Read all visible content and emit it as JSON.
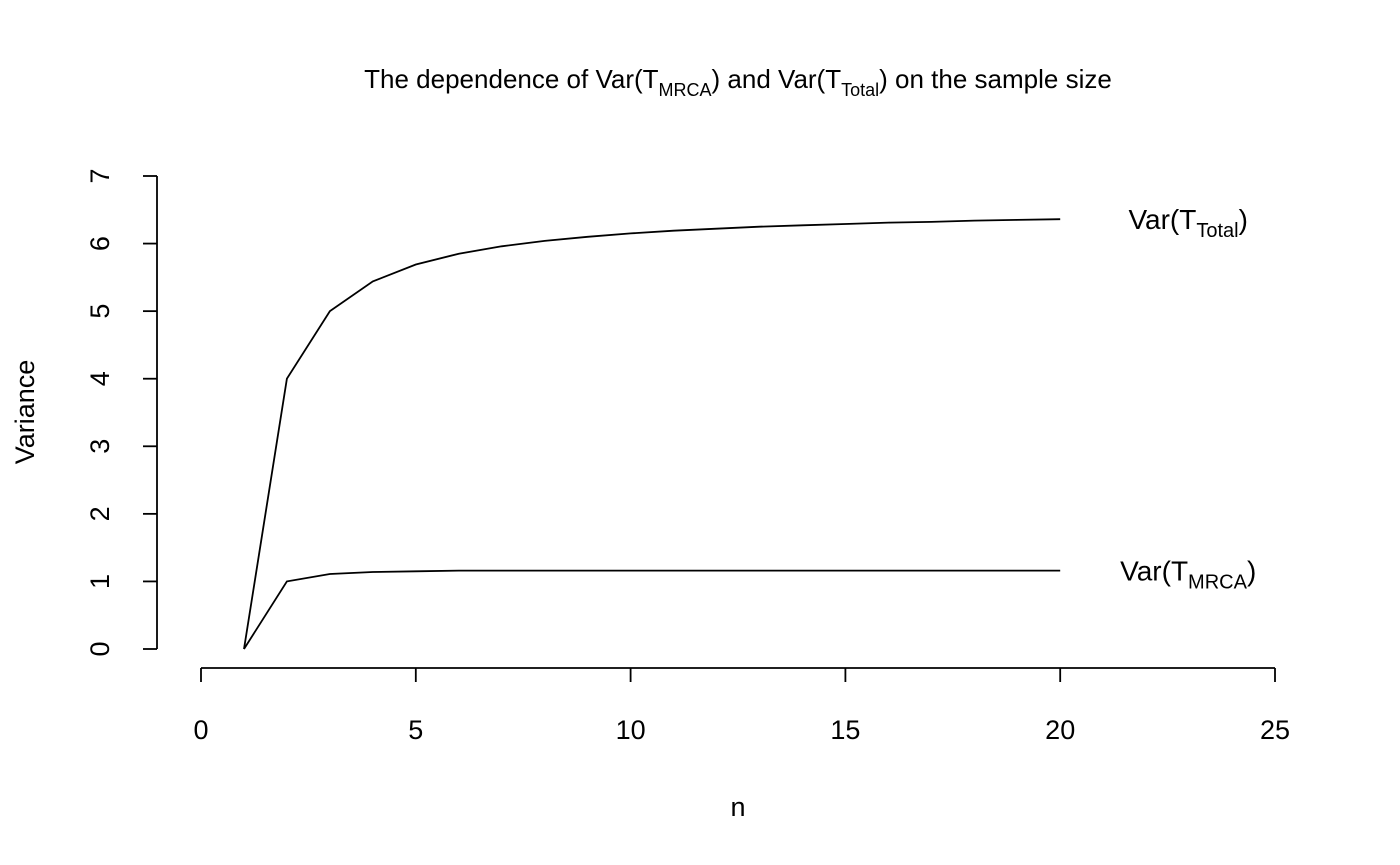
{
  "chart_data": {
    "type": "line",
    "title": {
      "prefix": "The dependence of ",
      "var1_pre": "Var(T",
      "var1_sub": "MRCA",
      "var1_post": ")",
      "middle": " and ",
      "var2_pre": "Var(T",
      "var2_sub": "Total",
      "var2_post": ")",
      "suffix": " on the sample size"
    },
    "xlabel": "n",
    "ylabel": "Variance",
    "xlim": [
      0,
      25
    ],
    "ylim": [
      0,
      7
    ],
    "xticks": [
      0,
      5,
      10,
      15,
      20,
      25
    ],
    "yticks": [
      0,
      1,
      2,
      3,
      4,
      5,
      6,
      7
    ],
    "x": [
      1,
      2,
      3,
      4,
      5,
      6,
      7,
      8,
      9,
      10,
      11,
      12,
      13,
      14,
      15,
      16,
      17,
      18,
      19,
      20
    ],
    "series": [
      {
        "key": "total",
        "label_pre": "Var(T",
        "label_sub": "Total",
        "label_post": ")",
        "values": [
          0,
          4.0,
          5.0,
          5.44,
          5.69,
          5.85,
          5.96,
          6.04,
          6.1,
          6.15,
          6.19,
          6.22,
          6.25,
          6.27,
          6.29,
          6.31,
          6.32,
          6.34,
          6.35,
          6.36
        ]
      },
      {
        "key": "mrca",
        "label_pre": "Var(T",
        "label_sub": "MRCA",
        "label_post": ")",
        "values": [
          0,
          1.0,
          1.11,
          1.14,
          1.15,
          1.16,
          1.16,
          1.16,
          1.16,
          1.16,
          1.16,
          1.16,
          1.16,
          1.16,
          1.16,
          1.16,
          1.16,
          1.16,
          1.16,
          1.16
        ]
      }
    ],
    "grid": false,
    "legend": "none"
  }
}
